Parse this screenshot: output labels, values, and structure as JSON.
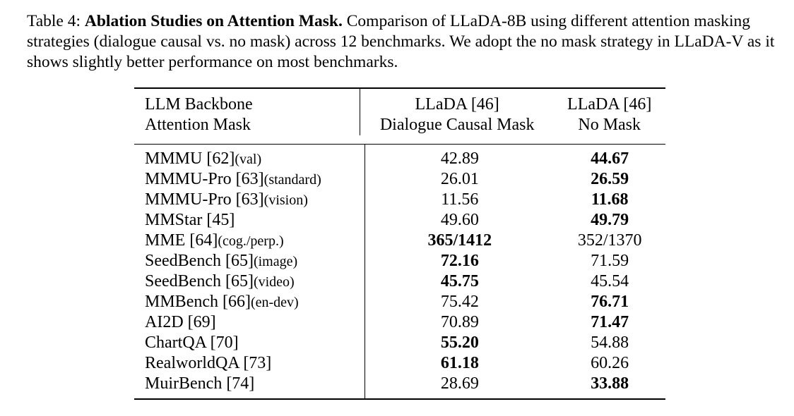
{
  "caption": {
    "label": "Table 4:",
    "title": "Ablation Studies on Attention Mask.",
    "text": "Comparison of LLaDA-8B using different attention masking strategies (dialogue causal vs.  no mask) across 12 benchmarks.  We adopt the no mask strategy in LLaDA-V as it shows slightly better performance on most benchmarks."
  },
  "table": {
    "header": {
      "row1": [
        "LLM Backbone",
        "LLaDA [46]",
        "LLaDA [46]"
      ],
      "row2": [
        "Attention Mask",
        "Dialogue Causal Mask",
        "No Mask"
      ]
    },
    "rows": [
      {
        "name": "MMMU [62]",
        "suffix": "(val)",
        "causal": "42.89",
        "nomask": "44.67",
        "best": "nomask"
      },
      {
        "name": "MMMU-Pro [63]",
        "suffix": "(standard)",
        "causal": "26.01",
        "nomask": "26.59",
        "best": "nomask"
      },
      {
        "name": "MMMU-Pro [63]",
        "suffix": "(vision)",
        "causal": "11.56",
        "nomask": "11.68",
        "best": "nomask"
      },
      {
        "name": "MMStar [45]",
        "suffix": "",
        "causal": "49.60",
        "nomask": "49.79",
        "best": "nomask"
      },
      {
        "name": "MME [64]",
        "suffix": "(cog./perp.)",
        "causal": "365/1412",
        "nomask": "352/1370",
        "best": "causal"
      },
      {
        "name": "SeedBench [65]",
        "suffix": "(image)",
        "causal": "72.16",
        "nomask": "71.59",
        "best": "causal"
      },
      {
        "name": "SeedBench [65]",
        "suffix": "(video)",
        "causal": "45.75",
        "nomask": "45.54",
        "best": "causal"
      },
      {
        "name": "MMBench [66]",
        "suffix": "(en-dev)",
        "causal": "75.42",
        "nomask": "76.71",
        "best": "nomask"
      },
      {
        "name": "AI2D [69]",
        "suffix": "",
        "causal": "70.89",
        "nomask": "71.47",
        "best": "nomask"
      },
      {
        "name": "ChartQA [70]",
        "suffix": "",
        "causal": "55.20",
        "nomask": "54.88",
        "best": "causal"
      },
      {
        "name": "RealworldQA [73]",
        "suffix": "",
        "causal": "61.18",
        "nomask": "60.26",
        "best": "causal"
      },
      {
        "name": "MuirBench [74]",
        "suffix": "",
        "causal": "28.69",
        "nomask": "33.88",
        "best": "nomask"
      }
    ]
  }
}
